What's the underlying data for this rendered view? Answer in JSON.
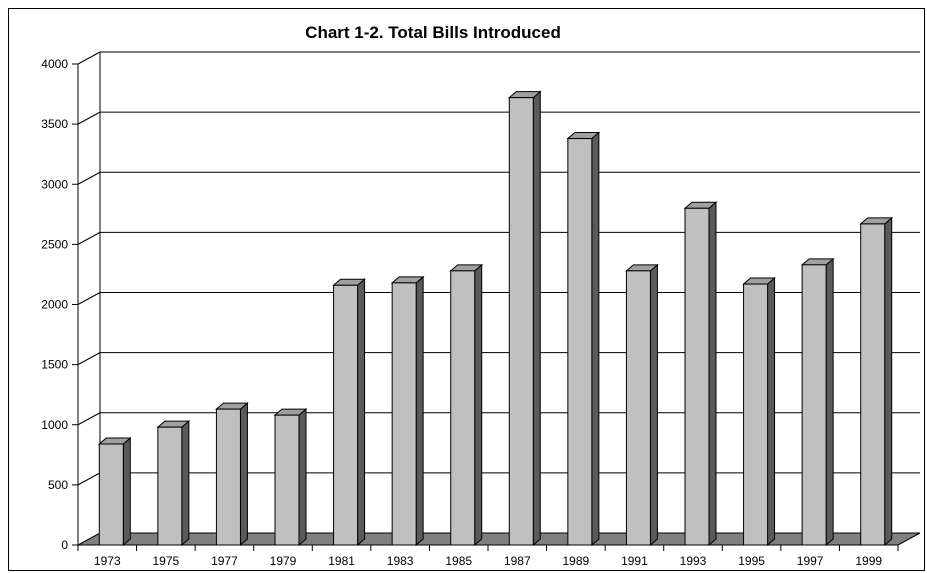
{
  "chart_data": {
    "type": "bar",
    "title": "Chart 1-2.  Total Bills Introduced",
    "xlabel": "",
    "ylabel": "",
    "categories": [
      "1973",
      "1975",
      "1977",
      "1979",
      "1981",
      "1983",
      "1985",
      "1987",
      "1989",
      "1991",
      "1993",
      "1995",
      "1997",
      "1999"
    ],
    "values": [
      840,
      980,
      1130,
      1080,
      2160,
      2180,
      2280,
      3720,
      3380,
      2280,
      2800,
      2170,
      2330,
      2670
    ],
    "ylim": [
      0,
      4000
    ],
    "yticks": [
      0,
      500,
      1000,
      1500,
      2000,
      2500,
      3000,
      3500,
      4000
    ],
    "grid": true,
    "style": "3d-bar",
    "colors": {
      "bar_front": "#c0c0c0",
      "bar_top": "#a0a0a0",
      "bar_side": "#5a5a5a",
      "floor": "#808080",
      "grid": "#000000"
    }
  }
}
